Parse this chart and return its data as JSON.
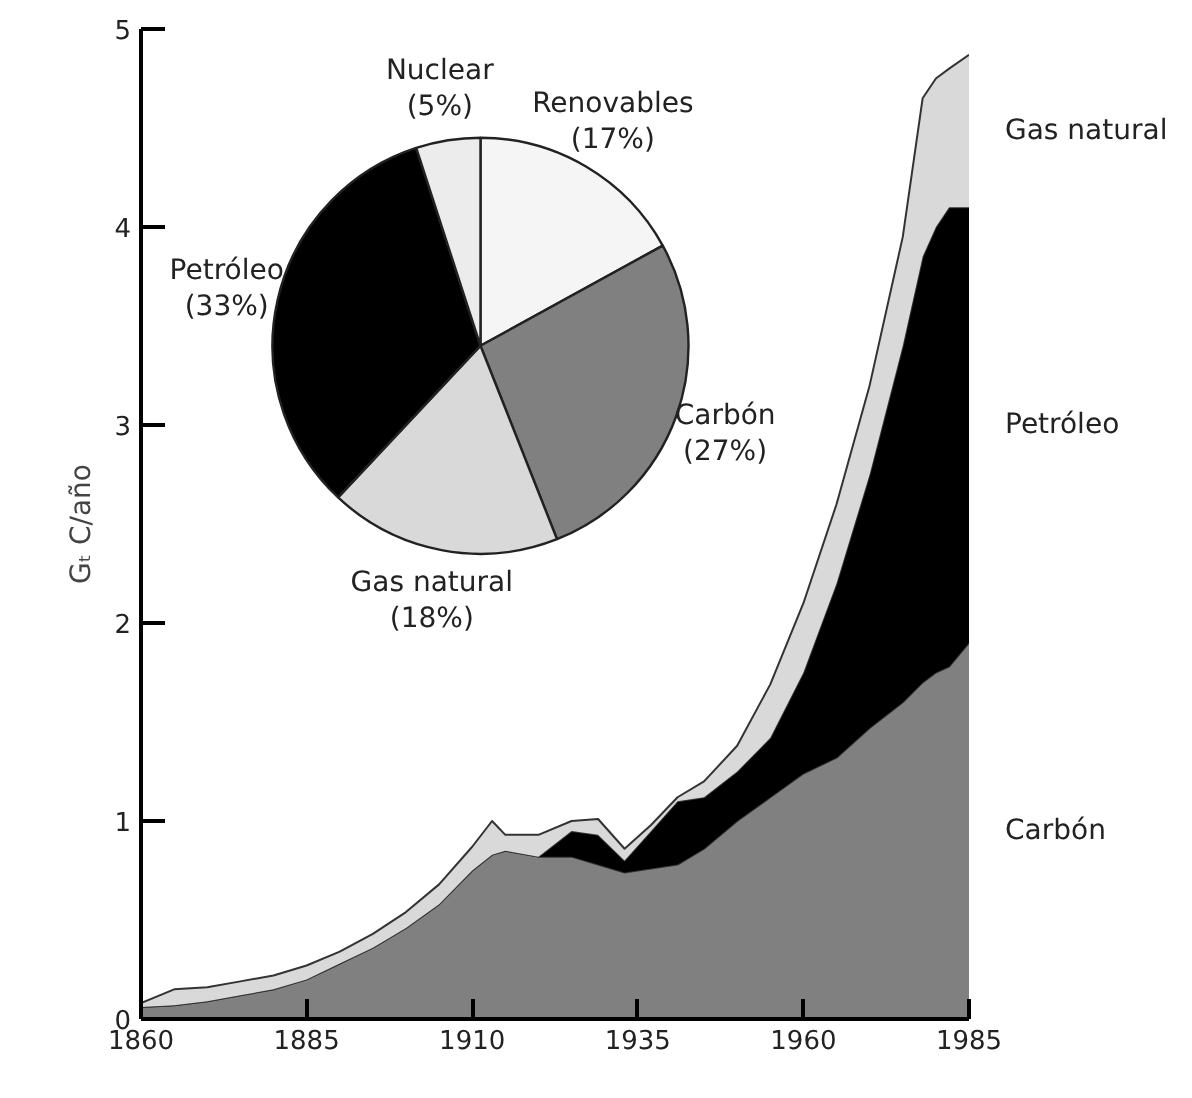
{
  "chart_data": [
    {
      "type": "area",
      "stacked": true,
      "ylabel": "Gₜ C/año",
      "xlim": [
        1860,
        1985
      ],
      "ylim": [
        0,
        5
      ],
      "xticks": [
        1860,
        1885,
        1910,
        1935,
        1960,
        1985
      ],
      "yticks": [
        0,
        1,
        2,
        3,
        4,
        5
      ],
      "grid": false,
      "x": [
        1860,
        1865,
        1870,
        1875,
        1880,
        1885,
        1890,
        1895,
        1900,
        1905,
        1910,
        1913,
        1915,
        1920,
        1925,
        1929,
        1933,
        1937,
        1941,
        1945,
        1950,
        1955,
        1960,
        1965,
        1970,
        1975,
        1978,
        1980,
        1982,
        1985
      ],
      "series": [
        {
          "name": "Carbón",
          "color": "#808080",
          "values": [
            0.06,
            0.07,
            0.09,
            0.12,
            0.15,
            0.2,
            0.28,
            0.36,
            0.46,
            0.58,
            0.75,
            0.83,
            0.85,
            0.82,
            0.82,
            0.78,
            0.74,
            0.76,
            0.78,
            0.86,
            1.0,
            1.12,
            1.24,
            1.32,
            1.47,
            1.6,
            1.7,
            1.75,
            1.78,
            1.9
          ]
        },
        {
          "name": "Petróleo",
          "color": "#000000",
          "values": [
            0,
            0,
            0,
            0,
            0,
            0,
            0,
            0,
            0,
            0,
            0,
            0,
            0,
            0,
            0.13,
            0.15,
            0.06,
            0.19,
            0.32,
            0.26,
            0.25,
            0.3,
            0.51,
            0.88,
            1.28,
            1.8,
            2.15,
            2.25,
            2.32,
            2.2
          ]
        },
        {
          "name": "Gas natural",
          "color": "#d9d9d9",
          "values": [
            0.02,
            0.08,
            0.07,
            0.07,
            0.07,
            0.07,
            0.06,
            0.07,
            0.08,
            0.1,
            0.12,
            0.17,
            0.08,
            0.11,
            0.05,
            0.08,
            0.06,
            0.03,
            0.02,
            0.08,
            0.13,
            0.27,
            0.35,
            0.4,
            0.45,
            0.55,
            0.8,
            0.75,
            0.7,
            0.77
          ]
        }
      ]
    },
    {
      "type": "pie",
      "categories": [
        "Renovables",
        "Carbón",
        "Gas natural",
        "Petróleo",
        "Nuclear"
      ],
      "values": [
        17,
        27,
        18,
        33,
        5
      ],
      "colors": [
        "#f5f5f5",
        "#808080",
        "#d9d9d9",
        "#000000",
        "#ececec"
      ],
      "value_labels": [
        "(17%)",
        "(27%)",
        "(18%)",
        "(33%)",
        "(5%)"
      ]
    }
  ]
}
